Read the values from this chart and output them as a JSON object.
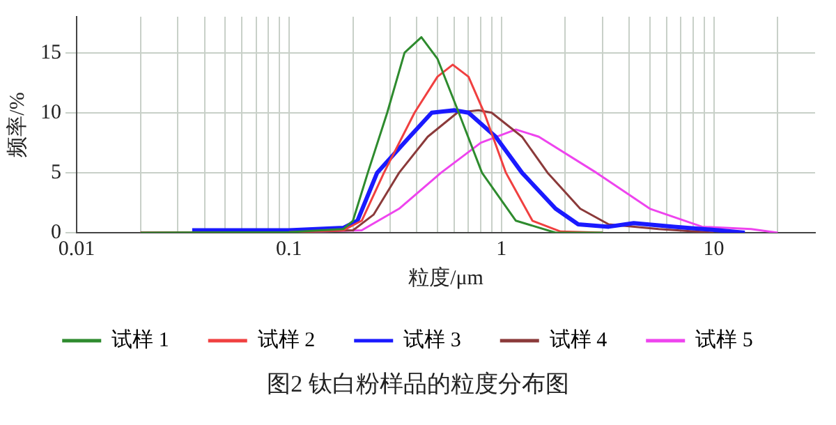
{
  "chart_data": {
    "type": "line",
    "title": "图2   钛白粉样品的粒度分布图",
    "xlabel": "粒度/μm",
    "ylabel": "频率/%",
    "log": "x",
    "grid": true,
    "legend": "bottom",
    "marker": "none",
    "line_style": "solid",
    "xlim": [
      0.01,
      30
    ],
    "ylim": [
      0,
      18
    ],
    "yticks": [
      0,
      5,
      10,
      15
    ],
    "xticks": [
      0.01,
      {
        "value": 0.02,
        "label": null
      },
      {
        "value": 0.03,
        "label": null
      },
      {
        "value": 0.04,
        "label": null
      },
      {
        "value": 0.05,
        "label": null
      },
      {
        "value": 0.06,
        "label": null
      },
      {
        "value": 0.07,
        "label": null
      },
      {
        "value": 0.08,
        "label": null
      },
      {
        "value": 0.09,
        "label": null
      },
      0.1,
      {
        "value": 0.2,
        "label": null
      },
      {
        "value": 0.3,
        "label": null
      },
      {
        "value": 0.4,
        "label": null
      },
      {
        "value": 0.5,
        "label": null
      },
      {
        "value": 0.6,
        "label": null
      },
      {
        "value": 0.7,
        "label": null
      },
      {
        "value": 0.8,
        "label": null
      },
      {
        "value": 0.9,
        "label": null
      },
      1,
      {
        "value": 2,
        "label": null
      },
      {
        "value": 3,
        "label": null
      },
      {
        "value": 4,
        "label": null
      },
      {
        "value": 5,
        "label": null
      },
      {
        "value": 6,
        "label": null
      },
      {
        "value": 7,
        "label": null
      },
      {
        "value": 8,
        "label": null
      },
      {
        "value": 9,
        "label": null
      },
      10,
      {
        "value": 20,
        "label": null
      }
    ],
    "series": [
      {
        "name": "试样 1",
        "color": "#2e8b2e",
        "x": [
          0.02,
          0.1,
          0.18,
          0.2,
          0.235,
          0.29,
          0.35,
          0.42,
          0.5,
          0.63,
          0.81,
          1.17,
          1.8,
          3
        ],
        "values": [
          0,
          0.05,
          0.3,
          1,
          5,
          10,
          15,
          16.3,
          14.5,
          10,
          5,
          1,
          0,
          0
        ]
      },
      {
        "name": "试样 2",
        "color": "#f04040",
        "x": [
          0.02,
          0.1,
          0.18,
          0.22,
          0.28,
          0.39,
          0.5,
          0.59,
          0.7,
          0.83,
          1.05,
          1.4,
          1.9,
          3
        ],
        "values": [
          0,
          0.05,
          0.2,
          1,
          5,
          10,
          13,
          14,
          13,
          10,
          5,
          1,
          0.1,
          0
        ]
      },
      {
        "name": "试样 3",
        "color": "#1a1aff",
        "x": [
          0.035,
          0.1,
          0.18,
          0.21,
          0.26,
          0.37,
          0.47,
          0.6,
          0.7,
          0.94,
          1.25,
          1.8,
          2.3,
          3.2,
          4.2,
          6.5,
          10.5,
          14
        ],
        "values": [
          0.2,
          0.2,
          0.4,
          1,
          5,
          8,
          10,
          10.2,
          10,
          8,
          5,
          2,
          0.7,
          0.5,
          0.8,
          0.5,
          0.2,
          0
        ]
      },
      {
        "name": "试样 4",
        "color": "#8b3a3a",
        "x": [
          0.02,
          0.1,
          0.2,
          0.25,
          0.33,
          0.45,
          0.62,
          0.78,
          0.9,
          1.25,
          1.65,
          2.35,
          3.2,
          5.5,
          10
        ],
        "values": [
          0,
          0.05,
          0.2,
          1.5,
          5,
          8,
          10,
          10.2,
          10,
          8,
          5,
          2,
          0.7,
          0.3,
          0
        ]
      },
      {
        "name": "试样 5",
        "color": "#ee44ee",
        "x": [
          0.02,
          0.1,
          0.22,
          0.33,
          0.52,
          0.8,
          1.17,
          1.5,
          2.8,
          5,
          8.8,
          15,
          20
        ],
        "values": [
          0,
          0.05,
          0.2,
          2,
          5,
          7.5,
          8.6,
          8,
          5,
          2,
          0.5,
          0.3,
          0
        ]
      }
    ]
  }
}
